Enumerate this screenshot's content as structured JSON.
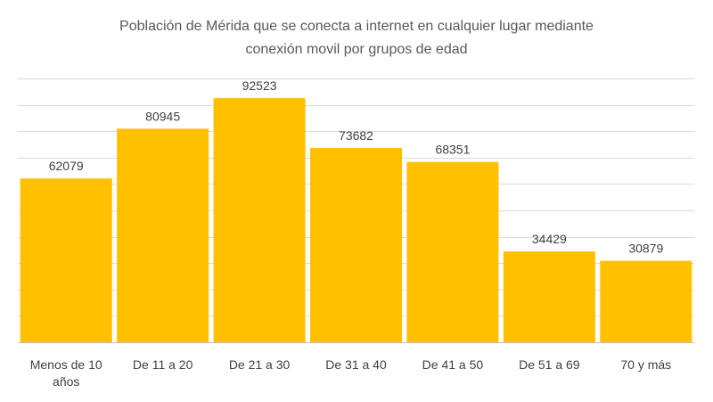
{
  "chart_data": {
    "type": "bar",
    "title_lines": [
      "Población de Mérida que se conecta a internet en  cualquier lugar  mediante",
      "conexión movil por grupos de edad"
    ],
    "categories": [
      [
        "Menos de 10",
        "años"
      ],
      [
        "De 11 a 20"
      ],
      [
        "De 21 a 30"
      ],
      [
        "De 31 a 40"
      ],
      [
        "De 41 a 50"
      ],
      [
        "De 51 a 69"
      ],
      [
        "70 y más"
      ]
    ],
    "values": [
      62079,
      80945,
      92523,
      73682,
      68351,
      34429,
      30879
    ],
    "data_labels": [
      "62079",
      "80945",
      "92523",
      "73682",
      "68351",
      "34429",
      "30879"
    ],
    "ylim": [
      0,
      100000
    ],
    "gridlines": [
      10000,
      20000,
      30000,
      40000,
      50000,
      60000,
      70000,
      80000,
      90000,
      100000
    ],
    "grid": true,
    "legend": "none",
    "bar_color": "#ffc000"
  }
}
